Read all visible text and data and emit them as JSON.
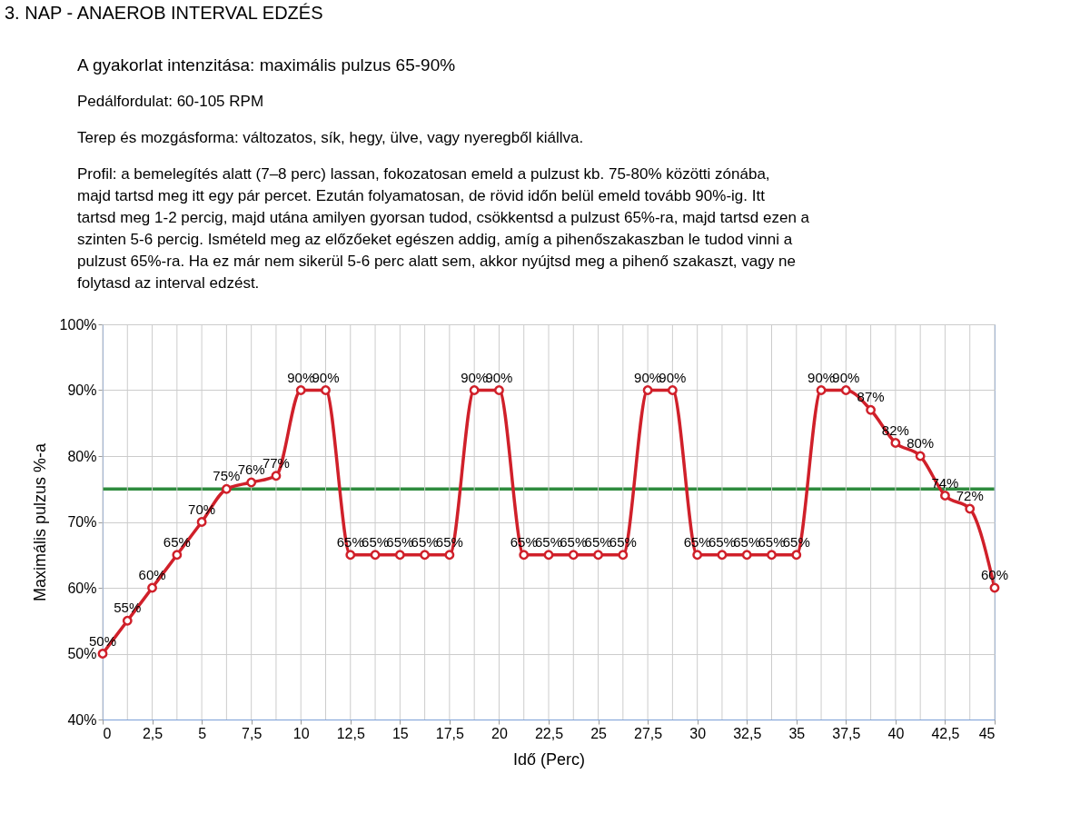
{
  "chart_data": {
    "type": "line",
    "title": "3. NAP - ANAEROB INTERVAL EDZÉS",
    "annotations": [
      "A gyakorlat intenzitása: maximális pulzus 65-90%",
      "Pedálfordulat: 60-105 RPM",
      "Terep és mozgásforma: változatos, sík, hegy, ülve, vagy nyeregből kiállva.",
      "Profil: a bemelegítés alatt (7–8 perc) lassan, fokozatosan emeld a pulzust kb. 75-80% közötti zónába, majd tartsd meg itt egy pár percet. Ezután folyamatosan, de rövid időn belül emeld tovább 90%-ig. Itt tartsd meg 1-2 percig, majd utána amilyen gyorsan tudod, csökkentsd a pulzust 65%-ra, majd tartsd ezen a szinten 5-6 percig. Ismételd meg az előzőeket egészen addig, amíg a pihenőszakaszban le tudod vinni a pulzust 65%-ra. Ha ez már nem sikerül 5-6 perc alatt sem, akkor nyújtsd meg a pihenő szakaszt, vagy ne folytasd az interval edzést."
    ],
    "xlabel": "Idő (Perc)",
    "ylabel": "Maximális pulzus %-a",
    "x": [
      0,
      1.25,
      2.5,
      3.75,
      5,
      6.25,
      7.5,
      8.75,
      10,
      11.25,
      12.5,
      13.75,
      15,
      16.25,
      17.5,
      18.75,
      20,
      21.25,
      22.5,
      23.75,
      25,
      26.25,
      27.5,
      28.75,
      30,
      31.25,
      32.5,
      33.75,
      35,
      36.25,
      37.5,
      38.75,
      40,
      41.25,
      42.5,
      43.75,
      45
    ],
    "series": [
      {
        "color": "#d0202a",
        "values": [
          50,
          55,
          60,
          65,
          70,
          75,
          76,
          77,
          90,
          90,
          65,
          65,
          65,
          65,
          65,
          90,
          90,
          65,
          65,
          65,
          65,
          65,
          90,
          90,
          65,
          65,
          65,
          65,
          65,
          90,
          90,
          87,
          82,
          80,
          74,
          72,
          60
        ],
        "value_labels": [
          "50%",
          "55%",
          "60%",
          "65%",
          "70%",
          "75%",
          "76%",
          "77%",
          "90%",
          "90%",
          "65%",
          "65%",
          "65%",
          "65%",
          "65%",
          "90%",
          "90%",
          "65%",
          "65%",
          "65%",
          "65%",
          "65%",
          "90%",
          "90%",
          "65%",
          "65%",
          "65%",
          "65%",
          "65%",
          "90%",
          "90%",
          "87%",
          "82%",
          "80%",
          "74%",
          "72%",
          "60%"
        ]
      }
    ],
    "xlim": [
      0,
      45
    ],
    "xticks": [
      0,
      {
        "value": 1.25,
        "label": null
      },
      {
        "value": 2.5,
        "label": "2,5"
      },
      {
        "value": 3.75,
        "label": null
      },
      5,
      {
        "value": 6.25,
        "label": null
      },
      {
        "value": 7.5,
        "label": "7,5"
      },
      {
        "value": 8.75,
        "label": null
      },
      10,
      {
        "value": 11.25,
        "label": null
      },
      {
        "value": 12.5,
        "label": "12,5"
      },
      {
        "value": 13.75,
        "label": null
      },
      15,
      {
        "value": 16.25,
        "label": null
      },
      {
        "value": 17.5,
        "label": "17,5"
      },
      {
        "value": 18.75,
        "label": null
      },
      20,
      {
        "value": 21.25,
        "label": null
      },
      {
        "value": 22.5,
        "label": "22,5"
      },
      {
        "value": 23.75,
        "label": null
      },
      25,
      {
        "value": 26.25,
        "label": null
      },
      {
        "value": 27.5,
        "label": "27,5"
      },
      {
        "value": 28.75,
        "label": null
      },
      30,
      {
        "value": 31.25,
        "label": null
      },
      {
        "value": 32.5,
        "label": "32,5"
      },
      {
        "value": 33.75,
        "label": null
      },
      35,
      {
        "value": 36.25,
        "label": null
      },
      {
        "value": 37.5,
        "label": "37,5"
      },
      {
        "value": 38.75,
        "label": null
      },
      40,
      {
        "value": 41.25,
        "label": null
      },
      {
        "value": 42.5,
        "label": "42,5"
      },
      {
        "value": 43.75,
        "label": null
      },
      45
    ],
    "ylim": [
      40,
      100
    ],
    "yticks": [
      {
        "value": 40,
        "label": "40%"
      },
      {
        "value": 50,
        "label": "50%"
      },
      {
        "value": 60,
        "label": "60%"
      },
      {
        "value": 70,
        "label": "70%"
      },
      {
        "value": 80,
        "label": "80%"
      },
      {
        "value": 90,
        "label": "90%"
      },
      {
        "value": 100,
        "label": "100%"
      }
    ],
    "ref_lines": [
      {
        "axis": "y",
        "value": 75,
        "color": "#2e8b3e"
      }
    ],
    "grid": true,
    "marker": "circle",
    "line_style": "solid"
  }
}
